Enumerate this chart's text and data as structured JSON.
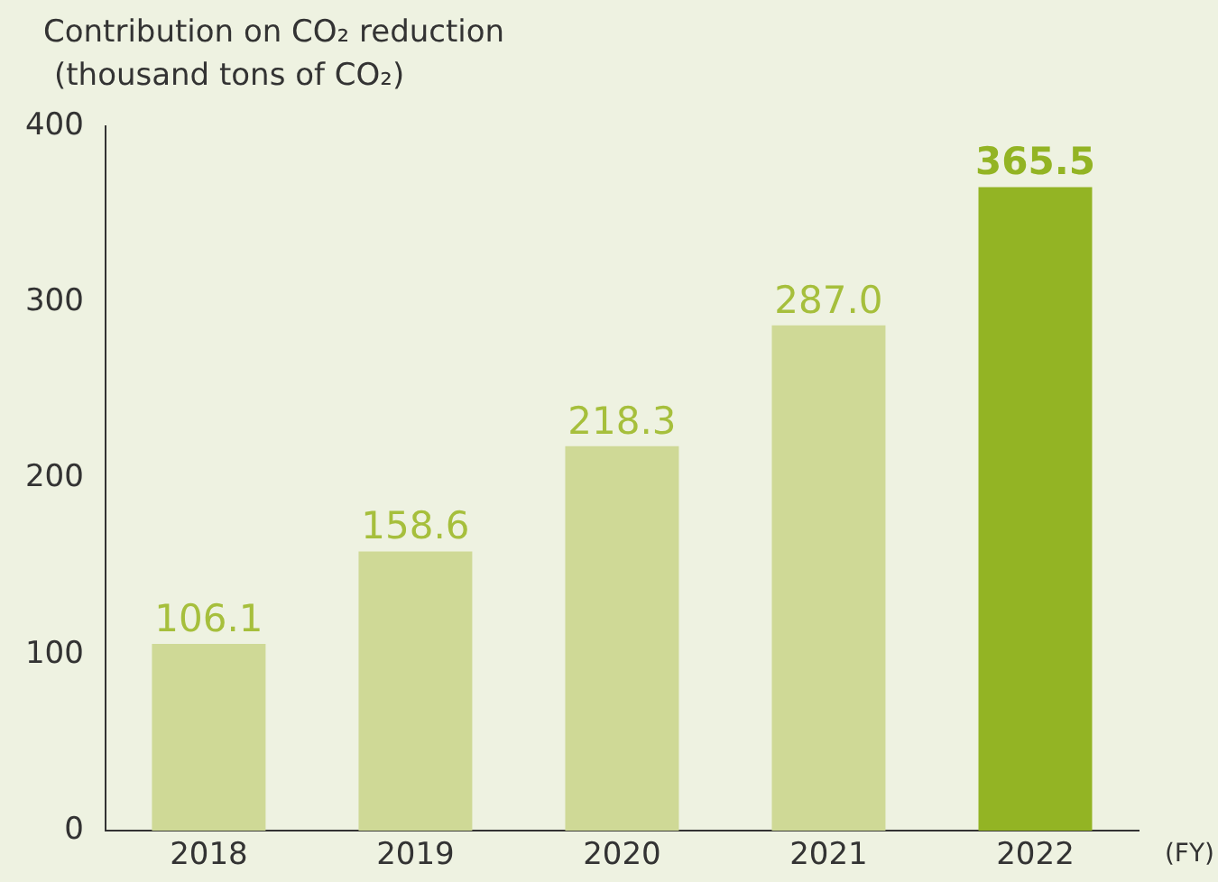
{
  "chart_data": {
    "type": "bar",
    "ylabel": "Contribution on CO₂ reduction\n(thousand tons of CO₂)",
    "xlabel": "(FY)",
    "categories": [
      "2018",
      "2019",
      "2020",
      "2021",
      "2022"
    ],
    "values": [
      106.1,
      158.6,
      218.3,
      287.0,
      365.5
    ],
    "value_labels": [
      "106.1",
      "158.6",
      "218.3",
      "287.0",
      "365.5"
    ],
    "colors": [
      "#cfd996",
      "#cfd996",
      "#cfd996",
      "#cfd996",
      "#93b424"
    ],
    "ylim": [
      0,
      400
    ],
    "yticks": [
      0,
      100,
      200,
      300,
      400
    ],
    "grid": false
  }
}
